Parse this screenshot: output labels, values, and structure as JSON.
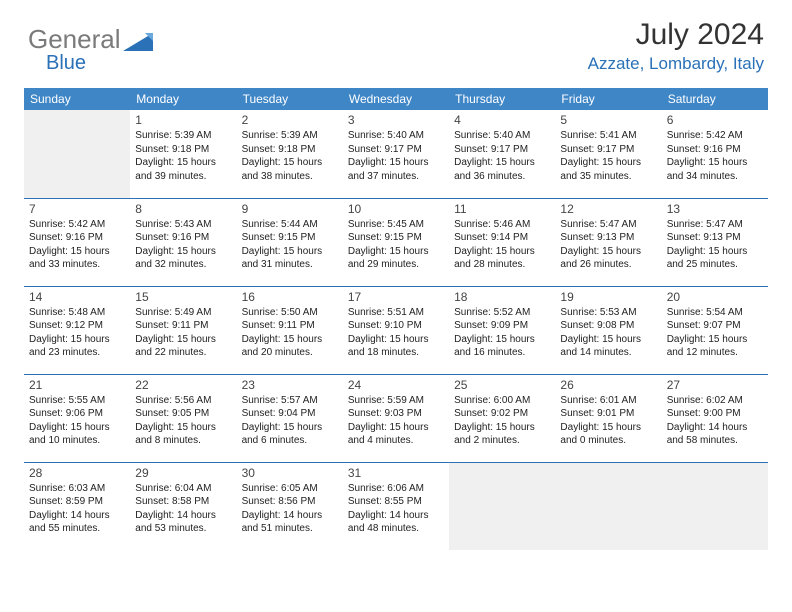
{
  "logo": {
    "text_grey": "General",
    "text_blue": "Blue"
  },
  "colors": {
    "header_bg": "#3f86c7",
    "header_text": "#ffffff",
    "accent": "#2a71b8",
    "text": "#333333",
    "body_text": "#222222",
    "empty_bg": "#f0f0f0",
    "page_bg": "#ffffff"
  },
  "title": "July 2024",
  "location": "Azzate, Lombardy, Italy",
  "weekdays": [
    "Sunday",
    "Monday",
    "Tuesday",
    "Wednesday",
    "Thursday",
    "Friday",
    "Saturday"
  ],
  "weeks": [
    [
      {
        "blank": true
      },
      {
        "day": "1",
        "sunrise": "Sunrise: 5:39 AM",
        "sunset": "Sunset: 9:18 PM",
        "daylight1": "Daylight: 15 hours",
        "daylight2": "and 39 minutes."
      },
      {
        "day": "2",
        "sunrise": "Sunrise: 5:39 AM",
        "sunset": "Sunset: 9:18 PM",
        "daylight1": "Daylight: 15 hours",
        "daylight2": "and 38 minutes."
      },
      {
        "day": "3",
        "sunrise": "Sunrise: 5:40 AM",
        "sunset": "Sunset: 9:17 PM",
        "daylight1": "Daylight: 15 hours",
        "daylight2": "and 37 minutes."
      },
      {
        "day": "4",
        "sunrise": "Sunrise: 5:40 AM",
        "sunset": "Sunset: 9:17 PM",
        "daylight1": "Daylight: 15 hours",
        "daylight2": "and 36 minutes."
      },
      {
        "day": "5",
        "sunrise": "Sunrise: 5:41 AM",
        "sunset": "Sunset: 9:17 PM",
        "daylight1": "Daylight: 15 hours",
        "daylight2": "and 35 minutes."
      },
      {
        "day": "6",
        "sunrise": "Sunrise: 5:42 AM",
        "sunset": "Sunset: 9:16 PM",
        "daylight1": "Daylight: 15 hours",
        "daylight2": "and 34 minutes."
      }
    ],
    [
      {
        "day": "7",
        "sunrise": "Sunrise: 5:42 AM",
        "sunset": "Sunset: 9:16 PM",
        "daylight1": "Daylight: 15 hours",
        "daylight2": "and 33 minutes."
      },
      {
        "day": "8",
        "sunrise": "Sunrise: 5:43 AM",
        "sunset": "Sunset: 9:16 PM",
        "daylight1": "Daylight: 15 hours",
        "daylight2": "and 32 minutes."
      },
      {
        "day": "9",
        "sunrise": "Sunrise: 5:44 AM",
        "sunset": "Sunset: 9:15 PM",
        "daylight1": "Daylight: 15 hours",
        "daylight2": "and 31 minutes."
      },
      {
        "day": "10",
        "sunrise": "Sunrise: 5:45 AM",
        "sunset": "Sunset: 9:15 PM",
        "daylight1": "Daylight: 15 hours",
        "daylight2": "and 29 minutes."
      },
      {
        "day": "11",
        "sunrise": "Sunrise: 5:46 AM",
        "sunset": "Sunset: 9:14 PM",
        "daylight1": "Daylight: 15 hours",
        "daylight2": "and 28 minutes."
      },
      {
        "day": "12",
        "sunrise": "Sunrise: 5:47 AM",
        "sunset": "Sunset: 9:13 PM",
        "daylight1": "Daylight: 15 hours",
        "daylight2": "and 26 minutes."
      },
      {
        "day": "13",
        "sunrise": "Sunrise: 5:47 AM",
        "sunset": "Sunset: 9:13 PM",
        "daylight1": "Daylight: 15 hours",
        "daylight2": "and 25 minutes."
      }
    ],
    [
      {
        "day": "14",
        "sunrise": "Sunrise: 5:48 AM",
        "sunset": "Sunset: 9:12 PM",
        "daylight1": "Daylight: 15 hours",
        "daylight2": "and 23 minutes."
      },
      {
        "day": "15",
        "sunrise": "Sunrise: 5:49 AM",
        "sunset": "Sunset: 9:11 PM",
        "daylight1": "Daylight: 15 hours",
        "daylight2": "and 22 minutes."
      },
      {
        "day": "16",
        "sunrise": "Sunrise: 5:50 AM",
        "sunset": "Sunset: 9:11 PM",
        "daylight1": "Daylight: 15 hours",
        "daylight2": "and 20 minutes."
      },
      {
        "day": "17",
        "sunrise": "Sunrise: 5:51 AM",
        "sunset": "Sunset: 9:10 PM",
        "daylight1": "Daylight: 15 hours",
        "daylight2": "and 18 minutes."
      },
      {
        "day": "18",
        "sunrise": "Sunrise: 5:52 AM",
        "sunset": "Sunset: 9:09 PM",
        "daylight1": "Daylight: 15 hours",
        "daylight2": "and 16 minutes."
      },
      {
        "day": "19",
        "sunrise": "Sunrise: 5:53 AM",
        "sunset": "Sunset: 9:08 PM",
        "daylight1": "Daylight: 15 hours",
        "daylight2": "and 14 minutes."
      },
      {
        "day": "20",
        "sunrise": "Sunrise: 5:54 AM",
        "sunset": "Sunset: 9:07 PM",
        "daylight1": "Daylight: 15 hours",
        "daylight2": "and 12 minutes."
      }
    ],
    [
      {
        "day": "21",
        "sunrise": "Sunrise: 5:55 AM",
        "sunset": "Sunset: 9:06 PM",
        "daylight1": "Daylight: 15 hours",
        "daylight2": "and 10 minutes."
      },
      {
        "day": "22",
        "sunrise": "Sunrise: 5:56 AM",
        "sunset": "Sunset: 9:05 PM",
        "daylight1": "Daylight: 15 hours",
        "daylight2": "and 8 minutes."
      },
      {
        "day": "23",
        "sunrise": "Sunrise: 5:57 AM",
        "sunset": "Sunset: 9:04 PM",
        "daylight1": "Daylight: 15 hours",
        "daylight2": "and 6 minutes."
      },
      {
        "day": "24",
        "sunrise": "Sunrise: 5:59 AM",
        "sunset": "Sunset: 9:03 PM",
        "daylight1": "Daylight: 15 hours",
        "daylight2": "and 4 minutes."
      },
      {
        "day": "25",
        "sunrise": "Sunrise: 6:00 AM",
        "sunset": "Sunset: 9:02 PM",
        "daylight1": "Daylight: 15 hours",
        "daylight2": "and 2 minutes."
      },
      {
        "day": "26",
        "sunrise": "Sunrise: 6:01 AM",
        "sunset": "Sunset: 9:01 PM",
        "daylight1": "Daylight: 15 hours",
        "daylight2": "and 0 minutes."
      },
      {
        "day": "27",
        "sunrise": "Sunrise: 6:02 AM",
        "sunset": "Sunset: 9:00 PM",
        "daylight1": "Daylight: 14 hours",
        "daylight2": "and 58 minutes."
      }
    ],
    [
      {
        "day": "28",
        "sunrise": "Sunrise: 6:03 AM",
        "sunset": "Sunset: 8:59 PM",
        "daylight1": "Daylight: 14 hours",
        "daylight2": "and 55 minutes."
      },
      {
        "day": "29",
        "sunrise": "Sunrise: 6:04 AM",
        "sunset": "Sunset: 8:58 PM",
        "daylight1": "Daylight: 14 hours",
        "daylight2": "and 53 minutes."
      },
      {
        "day": "30",
        "sunrise": "Sunrise: 6:05 AM",
        "sunset": "Sunset: 8:56 PM",
        "daylight1": "Daylight: 14 hours",
        "daylight2": "and 51 minutes."
      },
      {
        "day": "31",
        "sunrise": "Sunrise: 6:06 AM",
        "sunset": "Sunset: 8:55 PM",
        "daylight1": "Daylight: 14 hours",
        "daylight2": "and 48 minutes."
      },
      {
        "blank": true
      },
      {
        "blank": true
      },
      {
        "blank": true
      }
    ]
  ]
}
